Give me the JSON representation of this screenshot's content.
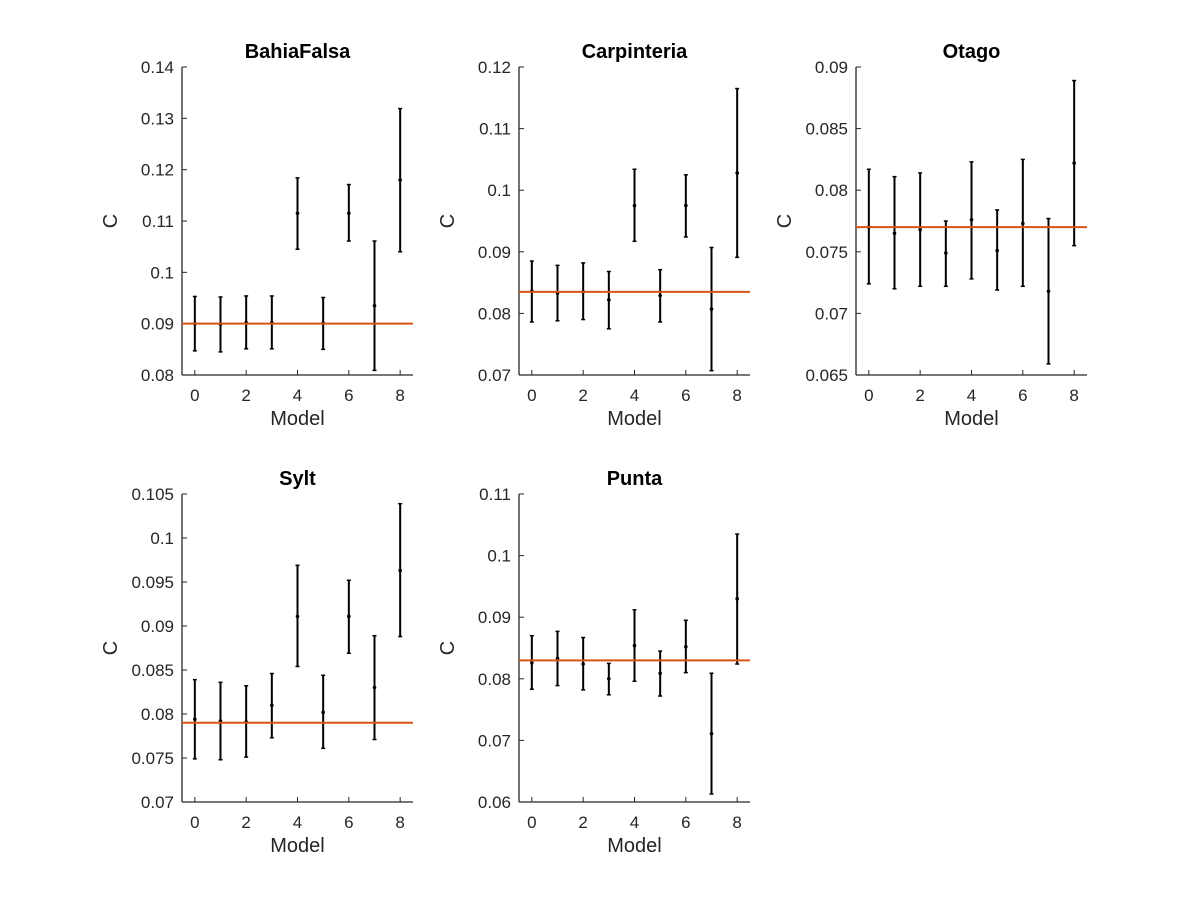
{
  "colors": {
    "reference_line": "#d95319",
    "errorbar": "#000000",
    "axis": "#262626"
  },
  "chart_data": [
    {
      "type": "scatter",
      "title": "BahiaFalsa",
      "xlabel": "Model",
      "ylabel": "C",
      "xlim": [
        -0.5,
        8.5
      ],
      "ylim": [
        0.08,
        0.14
      ],
      "xticks": [
        0,
        2,
        4,
        6,
        8
      ],
      "xtick_labels": [
        "0",
        "2",
        "4",
        "6",
        "8"
      ],
      "yticks": [
        0.08,
        0.09,
        0.1,
        0.11,
        0.12,
        0.13,
        0.14
      ],
      "ytick_labels": [
        "0.08",
        "0.09",
        "0.1",
        "0.11",
        "0.12",
        "0.13",
        "0.14"
      ],
      "reference_y": 0.09,
      "points": [
        {
          "x": 0,
          "y": 0.09,
          "low": 0.0847,
          "high": 0.0953
        },
        {
          "x": 1,
          "y": 0.0899,
          "low": 0.0845,
          "high": 0.0952
        },
        {
          "x": 2,
          "y": 0.0902,
          "low": 0.0851,
          "high": 0.0954
        },
        {
          "x": 3,
          "y": 0.0902,
          "low": 0.0851,
          "high": 0.0954
        },
        {
          "x": 4,
          "y": 0.1115,
          "low": 0.1045,
          "high": 0.1184
        },
        {
          "x": 5,
          "y": 0.0901,
          "low": 0.085,
          "high": 0.0951
        },
        {
          "x": 6,
          "y": 0.1115,
          "low": 0.1061,
          "high": 0.1171
        },
        {
          "x": 7,
          "y": 0.0935,
          "low": 0.0809,
          "high": 0.1061
        },
        {
          "x": 8,
          "y": 0.118,
          "low": 0.104,
          "high": 0.1319
        }
      ]
    },
    {
      "type": "scatter",
      "title": "Carpinteria",
      "xlabel": "Model",
      "ylabel": "C",
      "xlim": [
        -0.5,
        8.5
      ],
      "ylim": [
        0.07,
        0.12
      ],
      "xticks": [
        0,
        2,
        4,
        6,
        8
      ],
      "xtick_labels": [
        "0",
        "2",
        "4",
        "6",
        "8"
      ],
      "yticks": [
        0.07,
        0.08,
        0.09,
        0.1,
        0.11,
        0.12
      ],
      "ytick_labels": [
        "0.07",
        "0.08",
        "0.09",
        "0.1",
        "0.11",
        "0.12"
      ],
      "reference_y": 0.0835,
      "points": [
        {
          "x": 0,
          "y": 0.0836,
          "low": 0.0786,
          "high": 0.0885
        },
        {
          "x": 1,
          "y": 0.0833,
          "low": 0.0788,
          "high": 0.0878
        },
        {
          "x": 2,
          "y": 0.0835,
          "low": 0.079,
          "high": 0.0882
        },
        {
          "x": 3,
          "y": 0.0822,
          "low": 0.0775,
          "high": 0.0868
        },
        {
          "x": 4,
          "y": 0.0975,
          "low": 0.0917,
          "high": 0.1034
        },
        {
          "x": 5,
          "y": 0.0829,
          "low": 0.0786,
          "high": 0.0871
        },
        {
          "x": 6,
          "y": 0.0975,
          "low": 0.0924,
          "high": 0.1025
        },
        {
          "x": 7,
          "y": 0.0807,
          "low": 0.0707,
          "high": 0.0907
        },
        {
          "x": 8,
          "y": 0.1028,
          "low": 0.0891,
          "high": 0.1165
        }
      ]
    },
    {
      "type": "scatter",
      "title": "Otago",
      "xlabel": "Model",
      "ylabel": "C",
      "xlim": [
        -0.5,
        8.5
      ],
      "ylim": [
        0.065,
        0.09
      ],
      "xticks": [
        0,
        2,
        4,
        6,
        8
      ],
      "xtick_labels": [
        "0",
        "2",
        "4",
        "6",
        "8"
      ],
      "yticks": [
        0.065,
        0.07,
        0.075,
        0.08,
        0.085,
        0.09
      ],
      "ytick_labels": [
        "0.065",
        "0.07",
        "0.075",
        "0.08",
        "0.085",
        "0.09"
      ],
      "reference_y": 0.077,
      "points": [
        {
          "x": 0,
          "y": 0.077,
          "low": 0.0724,
          "high": 0.0817
        },
        {
          "x": 1,
          "y": 0.0765,
          "low": 0.072,
          "high": 0.0811
        },
        {
          "x": 2,
          "y": 0.0768,
          "low": 0.0722,
          "high": 0.0814
        },
        {
          "x": 3,
          "y": 0.0749,
          "low": 0.0722,
          "high": 0.0775
        },
        {
          "x": 4,
          "y": 0.0776,
          "low": 0.0728,
          "high": 0.0823
        },
        {
          "x": 5,
          "y": 0.0751,
          "low": 0.0719,
          "high": 0.0784
        },
        {
          "x": 6,
          "y": 0.0773,
          "low": 0.0722,
          "high": 0.0825
        },
        {
          "x": 7,
          "y": 0.0718,
          "low": 0.0659,
          "high": 0.0777
        },
        {
          "x": 8,
          "y": 0.0822,
          "low": 0.0755,
          "high": 0.0889
        }
      ]
    },
    {
      "type": "scatter",
      "title": "Sylt",
      "xlabel": "Model",
      "ylabel": "C",
      "xlim": [
        -0.5,
        8.5
      ],
      "ylim": [
        0.07,
        0.105
      ],
      "xticks": [
        0,
        2,
        4,
        6,
        8
      ],
      "xtick_labels": [
        "0",
        "2",
        "4",
        "6",
        "8"
      ],
      "yticks": [
        0.07,
        0.075,
        0.08,
        0.085,
        0.09,
        0.095,
        0.1,
        0.105
      ],
      "ytick_labels": [
        "0.07",
        "0.075",
        "0.08",
        "0.085",
        "0.09",
        "0.095",
        "0.1",
        "0.105"
      ],
      "reference_y": 0.079,
      "points": [
        {
          "x": 0,
          "y": 0.0794,
          "low": 0.0749,
          "high": 0.0839
        },
        {
          "x": 1,
          "y": 0.0792,
          "low": 0.0748,
          "high": 0.0836
        },
        {
          "x": 2,
          "y": 0.0791,
          "low": 0.0751,
          "high": 0.0832
        },
        {
          "x": 3,
          "y": 0.081,
          "low": 0.0773,
          "high": 0.0846
        },
        {
          "x": 4,
          "y": 0.0911,
          "low": 0.0854,
          "high": 0.0969
        },
        {
          "x": 5,
          "y": 0.0802,
          "low": 0.0761,
          "high": 0.0844
        },
        {
          "x": 6,
          "y": 0.0911,
          "low": 0.0869,
          "high": 0.0952
        },
        {
          "x": 7,
          "y": 0.083,
          "low": 0.0771,
          "high": 0.0889
        },
        {
          "x": 8,
          "y": 0.0963,
          "low": 0.0888,
          "high": 0.1039
        }
      ]
    },
    {
      "type": "scatter",
      "title": "Punta",
      "xlabel": "Model",
      "ylabel": "C",
      "xlim": [
        -0.5,
        8.5
      ],
      "ylim": [
        0.06,
        0.11
      ],
      "xticks": [
        0,
        2,
        4,
        6,
        8
      ],
      "xtick_labels": [
        "0",
        "2",
        "4",
        "6",
        "8"
      ],
      "yticks": [
        0.06,
        0.07,
        0.08,
        0.09,
        0.1,
        0.11
      ],
      "ytick_labels": [
        "0.06",
        "0.07",
        "0.08",
        "0.09",
        "0.1",
        "0.11"
      ],
      "reference_y": 0.083,
      "points": [
        {
          "x": 0,
          "y": 0.0826,
          "low": 0.0783,
          "high": 0.087
        },
        {
          "x": 1,
          "y": 0.0833,
          "low": 0.0789,
          "high": 0.0877
        },
        {
          "x": 2,
          "y": 0.0824,
          "low": 0.0782,
          "high": 0.0867
        },
        {
          "x": 3,
          "y": 0.08,
          "low": 0.0774,
          "high": 0.0825
        },
        {
          "x": 4,
          "y": 0.0854,
          "low": 0.0796,
          "high": 0.0912
        },
        {
          "x": 5,
          "y": 0.0809,
          "low": 0.0772,
          "high": 0.0845
        },
        {
          "x": 6,
          "y": 0.0852,
          "low": 0.081,
          "high": 0.0895
        },
        {
          "x": 7,
          "y": 0.0711,
          "low": 0.0613,
          "high": 0.0809
        },
        {
          "x": 8,
          "y": 0.093,
          "low": 0.0824,
          "high": 0.1035
        }
      ]
    }
  ]
}
